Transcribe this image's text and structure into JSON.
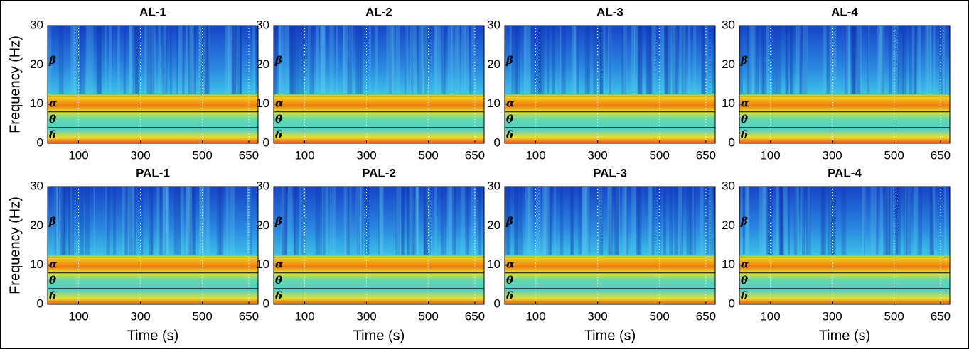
{
  "chart_data": [
    {
      "type": "heatmap",
      "title": "AL-1",
      "ylabel": "Frequency (Hz)",
      "xlim": [
        0,
        680
      ],
      "xticks": [
        100,
        300,
        500,
        650
      ],
      "ylim": [
        0,
        30
      ],
      "yticks": [
        0,
        10,
        20,
        30
      ],
      "band_edges": [
        4,
        8,
        12
      ],
      "band_labels": [
        "δ",
        "θ",
        "α",
        "β"
      ]
    },
    {
      "type": "heatmap",
      "title": "AL-2",
      "xlim": [
        0,
        680
      ],
      "xticks": [
        100,
        300,
        500,
        650
      ],
      "ylim": [
        0,
        30
      ],
      "yticks": [
        0,
        10,
        20,
        30
      ],
      "band_edges": [
        4,
        8,
        12
      ],
      "band_labels": [
        "δ",
        "θ",
        "α",
        "β"
      ]
    },
    {
      "type": "heatmap",
      "title": "AL-3",
      "xlim": [
        0,
        680
      ],
      "xticks": [
        100,
        300,
        500,
        650
      ],
      "ylim": [
        0,
        30
      ],
      "yticks": [
        0,
        10,
        20,
        30
      ],
      "band_edges": [
        4,
        8,
        12
      ],
      "band_labels": [
        "δ",
        "θ",
        "α",
        "β"
      ]
    },
    {
      "type": "heatmap",
      "title": "AL-4",
      "xlim": [
        0,
        680
      ],
      "xticks": [
        100,
        300,
        500,
        650
      ],
      "ylim": [
        0,
        30
      ],
      "yticks": [
        0,
        10,
        20,
        30
      ],
      "band_edges": [
        4,
        8,
        12
      ],
      "band_labels": [
        "δ",
        "θ",
        "α",
        "β"
      ]
    },
    {
      "type": "heatmap",
      "title": "PAL-1",
      "ylabel": "Frequency (Hz)",
      "xlabel": "Time (s)",
      "xlim": [
        0,
        680
      ],
      "xticks": [
        100,
        300,
        500,
        650
      ],
      "ylim": [
        0,
        30
      ],
      "yticks": [
        0,
        10,
        20,
        30
      ],
      "band_edges": [
        4,
        8,
        12
      ],
      "band_labels": [
        "δ",
        "θ",
        "α",
        "β"
      ]
    },
    {
      "type": "heatmap",
      "title": "PAL-2",
      "xlabel": "Time (s)",
      "xlim": [
        0,
        680
      ],
      "xticks": [
        100,
        300,
        500,
        650
      ],
      "ylim": [
        0,
        30
      ],
      "yticks": [
        0,
        10,
        20,
        30
      ],
      "band_edges": [
        4,
        8,
        12
      ],
      "band_labels": [
        "δ",
        "θ",
        "α",
        "β"
      ]
    },
    {
      "type": "heatmap",
      "title": "PAL-3",
      "xlabel": "Time (s)",
      "xlim": [
        0,
        680
      ],
      "xticks": [
        100,
        300,
        500,
        650
      ],
      "ylim": [
        0,
        30
      ],
      "yticks": [
        0,
        10,
        20,
        30
      ],
      "band_edges": [
        4,
        8,
        12
      ],
      "band_labels": [
        "δ",
        "θ",
        "α",
        "β"
      ]
    },
    {
      "type": "heatmap",
      "title": "PAL-4",
      "xlabel": "Time (s)",
      "xlim": [
        0,
        680
      ],
      "xticks": [
        100,
        300,
        500,
        650
      ],
      "ylim": [
        0,
        30
      ],
      "yticks": [
        0,
        10,
        20,
        30
      ],
      "band_edges": [
        4,
        8,
        12
      ],
      "band_labels": [
        "δ",
        "θ",
        "α",
        "β"
      ]
    }
  ]
}
